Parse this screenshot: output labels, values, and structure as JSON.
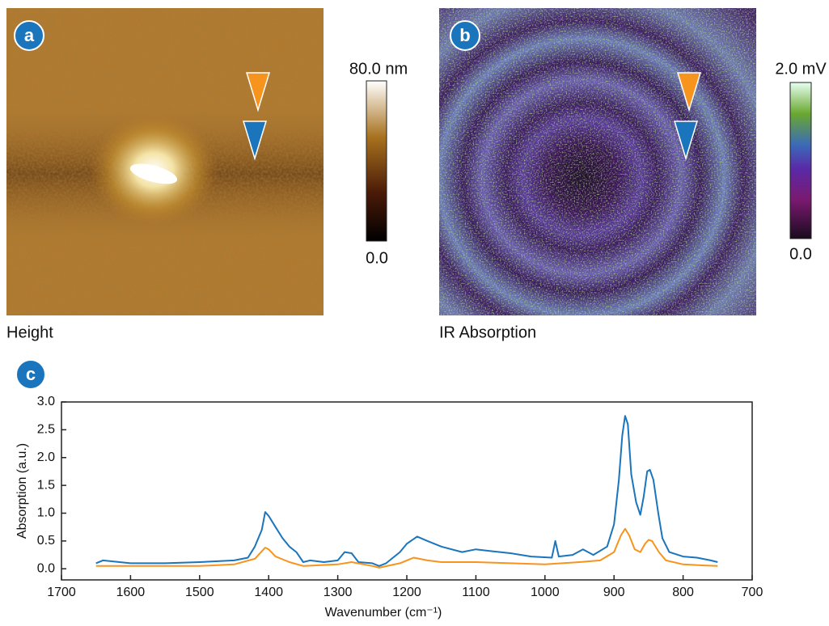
{
  "panels": [
    {
      "label": "a",
      "caption": "Height",
      "colorbar_max": "80.0 nm",
      "colorbar_min": "0.0"
    },
    {
      "label": "b",
      "caption": "IR Absorption",
      "colorbar_max": "2.0 mV",
      "colorbar_min": "0.0"
    }
  ],
  "chart_data": {
    "type": "line",
    "label": "c",
    "x_label": "Wavenumber (cm⁻¹)",
    "y_label": "Absorption (a.u.)",
    "xlim": [
      1700,
      700
    ],
    "ylim": [
      -0.2,
      3.0
    ],
    "xticks": [
      1700,
      1600,
      1500,
      1400,
      1300,
      1200,
      1100,
      1000,
      900,
      800,
      700
    ],
    "yticks": [
      {
        "value": 0,
        "label": "0.0"
      },
      {
        "value": 0.5,
        "label": "0.5"
      },
      {
        "value": 1,
        "label": "1.0"
      },
      {
        "value": 1.5,
        "label": "1.5"
      },
      {
        "value": 2,
        "label": "2.0"
      },
      {
        "value": 2.5,
        "label": "2.5"
      },
      {
        "value": 3,
        "label": "3.0"
      }
    ],
    "series": [
      {
        "color": "#1a75bc",
        "x": [
          1650,
          1640,
          1600,
          1550,
          1500,
          1450,
          1430,
          1420,
          1410,
          1405,
          1400,
          1390,
          1380,
          1370,
          1360,
          1350,
          1340,
          1320,
          1300,
          1290,
          1280,
          1270,
          1250,
          1240,
          1230,
          1210,
          1200,
          1185,
          1170,
          1150,
          1120,
          1100,
          1080,
          1050,
          1020,
          990,
          985,
          980,
          960,
          945,
          930,
          910,
          900,
          893,
          888,
          884,
          880,
          875,
          868,
          862,
          857,
          852,
          848,
          843,
          836,
          830,
          820,
          800,
          780,
          760,
          750
        ],
        "values": [
          0.1,
          0.15,
          0.1,
          0.1,
          0.12,
          0.15,
          0.2,
          0.4,
          0.7,
          1.02,
          0.95,
          0.75,
          0.55,
          0.4,
          0.3,
          0.12,
          0.15,
          0.12,
          0.15,
          0.3,
          0.28,
          0.12,
          0.1,
          0.05,
          0.1,
          0.3,
          0.45,
          0.58,
          0.5,
          0.4,
          0.3,
          0.35,
          0.32,
          0.28,
          0.22,
          0.2,
          0.5,
          0.22,
          0.25,
          0.35,
          0.25,
          0.4,
          0.8,
          1.6,
          2.4,
          2.75,
          2.6,
          1.7,
          1.2,
          0.97,
          1.3,
          1.75,
          1.78,
          1.6,
          1.0,
          0.55,
          0.3,
          0.22,
          0.2,
          0.15,
          0.12
        ]
      },
      {
        "color": "#f7941d",
        "x": [
          1650,
          1600,
          1550,
          1500,
          1450,
          1420,
          1405,
          1400,
          1390,
          1370,
          1350,
          1300,
          1280,
          1250,
          1240,
          1210,
          1190,
          1170,
          1150,
          1100,
          1050,
          1000,
          950,
          920,
          900,
          890,
          884,
          878,
          870,
          862,
          855,
          850,
          845,
          835,
          825,
          800,
          770,
          750
        ],
        "values": [
          0.05,
          0.05,
          0.05,
          0.05,
          0.08,
          0.18,
          0.38,
          0.35,
          0.22,
          0.12,
          0.05,
          0.08,
          0.12,
          0.05,
          0.02,
          0.1,
          0.2,
          0.15,
          0.12,
          0.12,
          0.1,
          0.08,
          0.12,
          0.15,
          0.3,
          0.6,
          0.72,
          0.6,
          0.35,
          0.3,
          0.45,
          0.52,
          0.5,
          0.3,
          0.15,
          0.08,
          0.06,
          0.05
        ]
      }
    ]
  }
}
